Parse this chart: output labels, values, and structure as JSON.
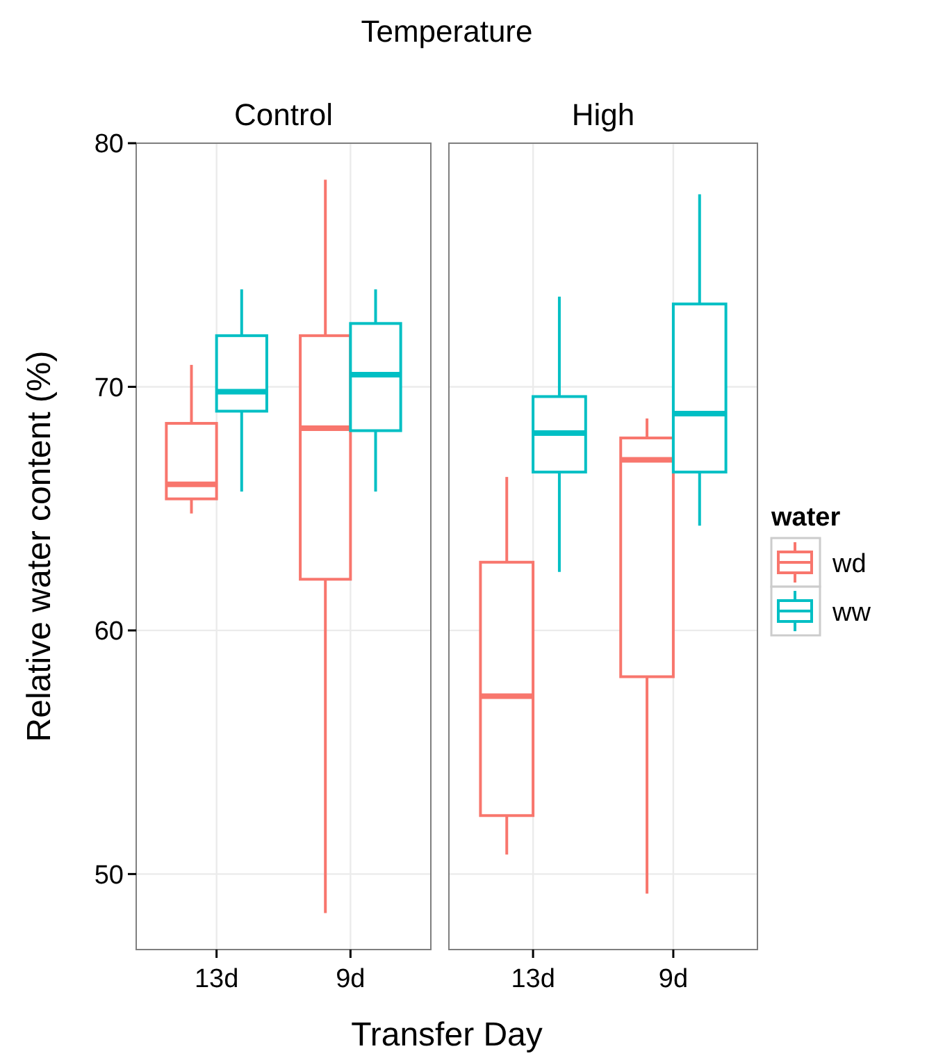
{
  "chart_data": [
    {
      "type": "box",
      "title": "Control",
      "ylabel": "Relative water content (%)",
      "xlabel": "Transfer Day",
      "annotations": [
        "Temperature"
      ],
      "categories": [
        "13d",
        "9d"
      ],
      "ylim": [
        46.9,
        80.0
      ],
      "yticks": [
        50,
        60,
        70,
        80
      ],
      "grid": true,
      "legend": false,
      "series": [
        {
          "color": "#f8766d",
          "boxes": [
            {
              "low": 64.8,
              "q1": 65.4,
              "median": 66.0,
              "q3": 68.5,
              "high": 70.9
            },
            {
              "low": 48.4,
              "q1": 62.1,
              "median": 68.3,
              "q3": 72.1,
              "high": 78.5
            }
          ]
        },
        {
          "color": "#00bfc4",
          "boxes": [
            {
              "low": 65.7,
              "q1": 69.0,
              "median": 69.8,
              "q3": 72.1,
              "high": 74.0
            },
            {
              "low": 65.7,
              "q1": 68.2,
              "median": 70.5,
              "q3": 72.6,
              "high": 74.0
            }
          ]
        }
      ]
    },
    {
      "type": "box",
      "title": "High",
      "legend_title": "water",
      "categories": [
        "13d",
        "9d"
      ],
      "ylim": [
        46.9,
        80.0
      ],
      "yticks": [
        50,
        60,
        70,
        80
      ],
      "tick_labels": "x",
      "grid": true,
      "legend": "right",
      "series": [
        {
          "name": "wd",
          "color": "#f8766d",
          "boxes": [
            {
              "low": 50.8,
              "q1": 52.4,
              "median": 57.3,
              "q3": 62.8,
              "high": 66.3
            },
            {
              "low": 49.2,
              "q1": 58.1,
              "median": 67.0,
              "q3": 67.9,
              "high": 68.7
            }
          ]
        },
        {
          "name": "ww",
          "color": "#00bfc4",
          "boxes": [
            {
              "low": 62.4,
              "q1": 66.5,
              "median": 68.1,
              "q3": 69.6,
              "high": 73.7
            },
            {
              "low": 64.3,
              "q1": 66.5,
              "median": 68.9,
              "q3": 73.4,
              "high": 77.9
            }
          ]
        }
      ]
    }
  ]
}
